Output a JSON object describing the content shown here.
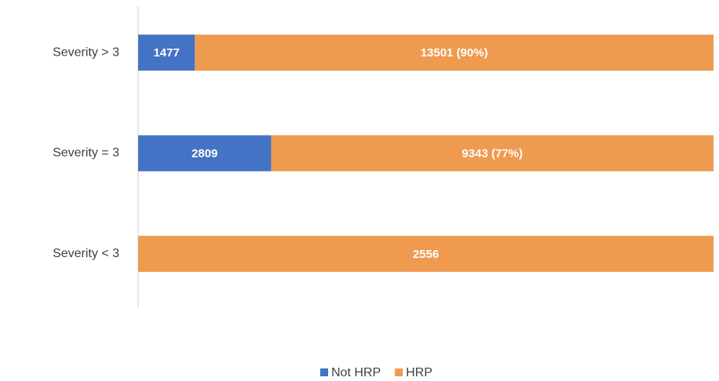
{
  "chart_data": {
    "type": "bar",
    "orientation": "horizontal",
    "stacking": "percent",
    "categories": [
      "Severity > 3",
      "Severity = 3",
      "Severity < 3"
    ],
    "series": [
      {
        "name": "Not HRP",
        "color": "#4472c4",
        "values": [
          1477,
          2809,
          0
        ]
      },
      {
        "name": "HRP",
        "color": "#ee9a4f",
        "values": [
          13501,
          9343,
          2556
        ],
        "value_labels": [
          "13501 (90%)",
          "9343 (77%)",
          "2556"
        ]
      }
    ],
    "legend": "bottom"
  }
}
